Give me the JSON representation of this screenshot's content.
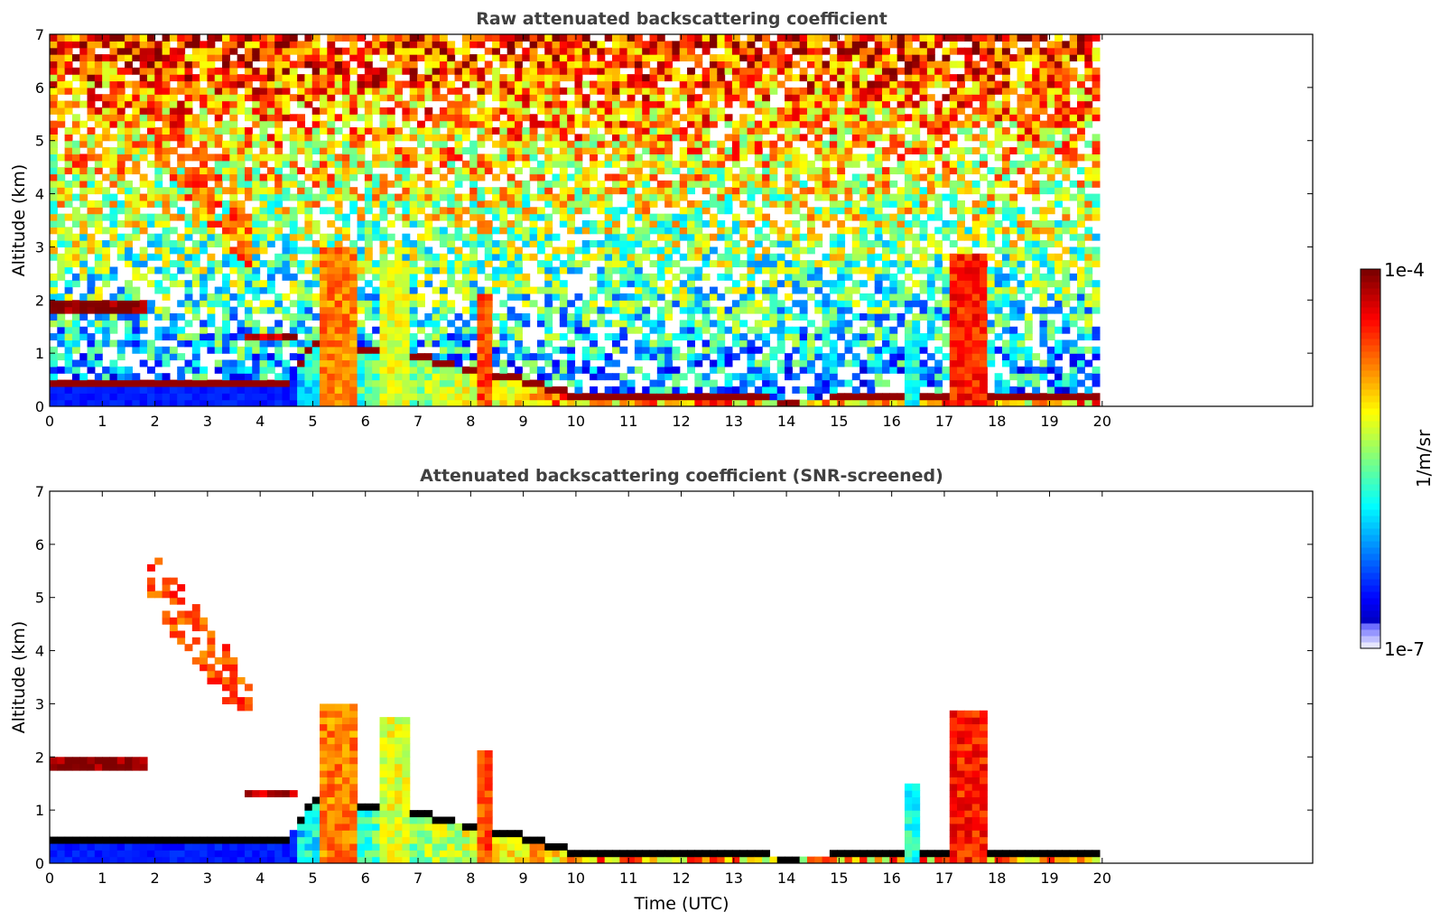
{
  "figure": {
    "colormap": "jet",
    "palette": [
      "#00007f",
      "#0000ff",
      "#007fff",
      "#00ffff",
      "#7fff7f",
      "#ffff00",
      "#ff7f00",
      "#ff0000",
      "#7f0000"
    ],
    "masked_color": "#ffffff"
  },
  "colorbar": {
    "max_label": "1e-4",
    "min_label": "1e-7",
    "unit_label": "1/m/sr",
    "scale": "log"
  },
  "chart_data": [
    {
      "type": "heatmap",
      "title": "Raw attenuated backscattering coefficient",
      "xlabel": "",
      "ylabel": "Altitude (km)",
      "xlim": [
        0,
        24
      ],
      "ylim": [
        0,
        7
      ],
      "xticks": [
        "0",
        "1",
        "2",
        "3",
        "4",
        "5",
        "6",
        "7",
        "8",
        "9",
        "10",
        "11",
        "12",
        "13",
        "14",
        "15",
        "16",
        "17",
        "18",
        "19",
        "20"
      ],
      "yticks": [
        "0",
        "1",
        "2",
        "3",
        "4",
        "5",
        "6",
        "7"
      ],
      "data_end_time": 19.95,
      "boundary_layer_top_km": [
        [
          0,
          0.5
        ],
        [
          2,
          0.5
        ],
        [
          4.5,
          0.5
        ],
        [
          5,
          1.2
        ],
        [
          6,
          1.15
        ],
        [
          7,
          1.0
        ],
        [
          8,
          0.75
        ],
        [
          9,
          0.55
        ],
        [
          10,
          0.25
        ],
        [
          12,
          0.22
        ],
        [
          14,
          0.18
        ],
        [
          16,
          0.2
        ],
        [
          17.5,
          0.2
        ],
        [
          20,
          0.2
        ]
      ],
      "features": [
        {
          "kind": "cloud_layer",
          "t": [
            0,
            1.9
          ],
          "alt_km": [
            1.8,
            2.0
          ],
          "level": 1.0
        },
        {
          "kind": "cloud_layer",
          "t": [
            3.7,
            4.7
          ],
          "alt_km": [
            1.2,
            1.4
          ],
          "level": 0.95
        },
        {
          "kind": "cirrus_streak",
          "t": [
            1.9,
            3.9
          ],
          "alt_km": [
            2.5,
            5.7
          ],
          "level": 0.8
        },
        {
          "kind": "convective_plume",
          "t": [
            5.1,
            5.8
          ],
          "alt_km": [
            0,
            3.0
          ],
          "level": 0.75
        },
        {
          "kind": "convective_plume",
          "t": [
            6.2,
            6.9
          ],
          "alt_km": [
            0,
            2.7
          ],
          "level": 0.6
        },
        {
          "kind": "convective_plume",
          "t": [
            8.1,
            8.4
          ],
          "alt_km": [
            0,
            2.1
          ],
          "level": 0.8
        },
        {
          "kind": "convective_plume",
          "t": [
            16.3,
            16.5
          ],
          "alt_km": [
            0,
            1.5
          ],
          "level": 0.4
        },
        {
          "kind": "convective_plume",
          "t": [
            17.1,
            17.8
          ],
          "alt_km": [
            0,
            2.9
          ],
          "level": 0.85
        }
      ]
    },
    {
      "type": "heatmap",
      "title": "Attenuated backscattering coefficient (SNR-screened)",
      "xlabel": "Time (UTC)",
      "ylabel": "Altitude (km)",
      "xlim": [
        0,
        24
      ],
      "ylim": [
        0,
        7
      ],
      "xticks": [
        "0",
        "1",
        "2",
        "3",
        "4",
        "5",
        "6",
        "7",
        "8",
        "9",
        "10",
        "11",
        "12",
        "13",
        "14",
        "15",
        "16",
        "17",
        "18",
        "19",
        "20"
      ],
      "yticks": [
        "0",
        "1",
        "2",
        "3",
        "4",
        "5",
        "6",
        "7"
      ],
      "data_end_time": 19.95,
      "screened": true
    }
  ]
}
